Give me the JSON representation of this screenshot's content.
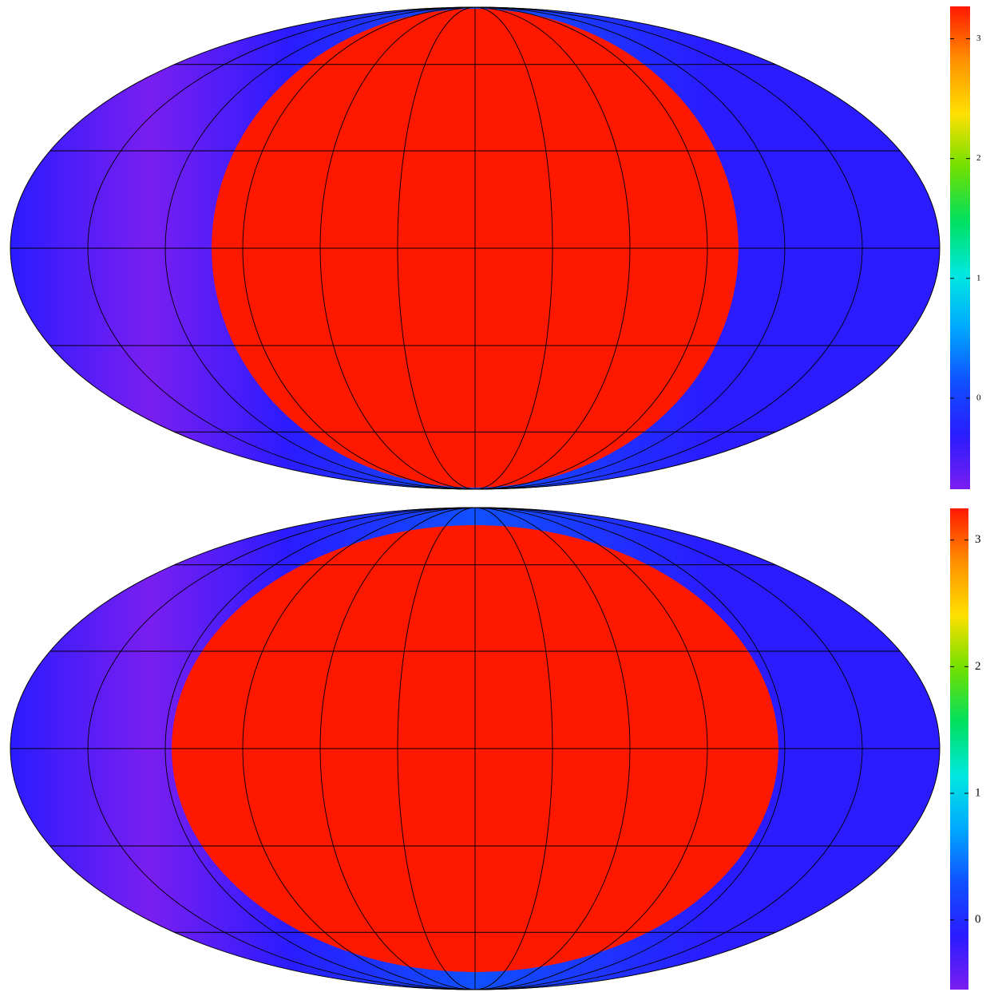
{
  "chart_data": [
    {
      "type": "heatmap",
      "projection": "mollweide",
      "colormap": [
        "#7a1ef0",
        "#2a1cff",
        "#1050ff",
        "#00a8ff",
        "#00e8e0",
        "#00e060",
        "#70e000",
        "#ffe000",
        "#ff9000",
        "#ff1800"
      ],
      "zlim": [
        -0.76,
        3.27
      ],
      "zticks": [
        0,
        1,
        2,
        3
      ]
    },
    {
      "type": "heatmap",
      "projection": "mollweide",
      "colormap": [
        "#7a1ef0",
        "#2a1cff",
        "#1050ff",
        "#00a8ff",
        "#00e8e0",
        "#00e060",
        "#70e000",
        "#ffe000",
        "#ff9000",
        "#ff1800"
      ],
      "zlim": [
        -0.55,
        3.25
      ],
      "zticks": [
        0,
        1,
        2,
        3
      ]
    }
  ]
}
